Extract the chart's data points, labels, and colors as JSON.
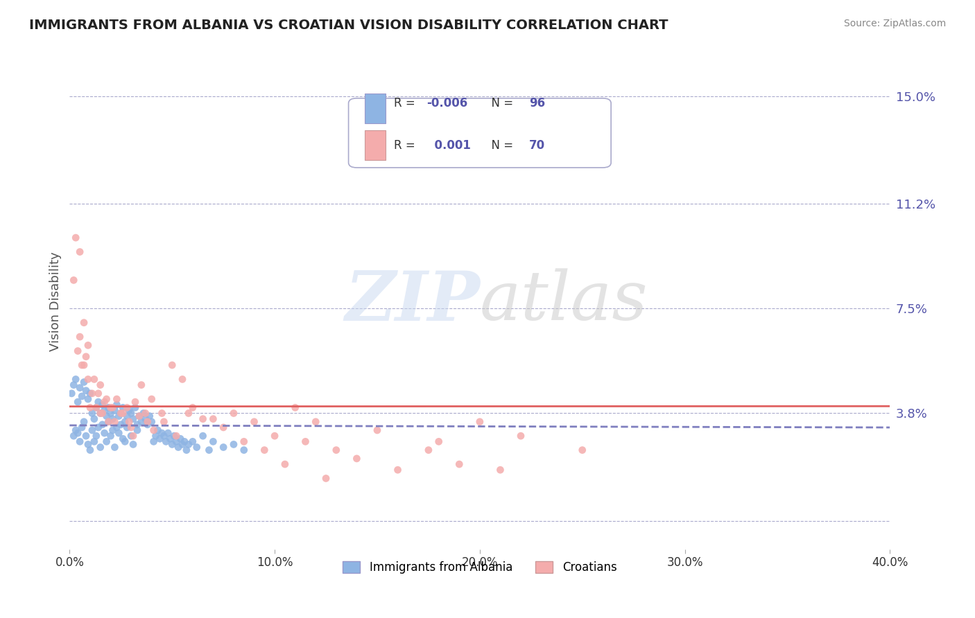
{
  "title": "IMMIGRANTS FROM ALBANIA VS CROATIAN VISION DISABILITY CORRELATION CHART",
  "source": "Source: ZipAtlas.com",
  "xlabel": "",
  "ylabel": "Vision Disability",
  "xlim": [
    0.0,
    0.4
  ],
  "ylim": [
    -0.01,
    0.165
  ],
  "yticks": [
    0.0,
    0.038,
    0.075,
    0.112,
    0.15
  ],
  "ytick_labels": [
    "",
    "3.8%",
    "7.5%",
    "11.2%",
    "15.0%"
  ],
  "xticks": [
    0.0,
    0.1,
    0.2,
    0.3,
    0.4
  ],
  "xtick_labels": [
    "0.0%",
    "10.0%",
    "20.0%",
    "30.0%",
    "40.0%"
  ],
  "blue_color": "#8EB4E3",
  "pink_color": "#F4ACAC",
  "blue_line_color": "#7F7FBF",
  "pink_line_color": "#E06060",
  "grid_color": "#AAAACC",
  "title_color": "#333333",
  "axis_label_color": "#5555AA",
  "watermark": "ZIPatlas",
  "legend_R1": "-0.006",
  "legend_N1": "96",
  "legend_R2": "0.001",
  "legend_N2": "70",
  "legend_label1": "Immigrants from Albania",
  "legend_label2": "Croatians",
  "blue_scatter_x": [
    0.002,
    0.003,
    0.004,
    0.005,
    0.006,
    0.007,
    0.008,
    0.009,
    0.01,
    0.011,
    0.012,
    0.013,
    0.014,
    0.015,
    0.016,
    0.017,
    0.018,
    0.019,
    0.02,
    0.021,
    0.022,
    0.023,
    0.024,
    0.025,
    0.026,
    0.027,
    0.028,
    0.03,
    0.031,
    0.033,
    0.001,
    0.002,
    0.003,
    0.004,
    0.005,
    0.006,
    0.007,
    0.008,
    0.009,
    0.01,
    0.011,
    0.012,
    0.013,
    0.014,
    0.015,
    0.016,
    0.017,
    0.018,
    0.019,
    0.02,
    0.021,
    0.022,
    0.023,
    0.024,
    0.025,
    0.026,
    0.027,
    0.028,
    0.029,
    0.03,
    0.031,
    0.032,
    0.033,
    0.034,
    0.035,
    0.036,
    0.037,
    0.038,
    0.039,
    0.04,
    0.041,
    0.042,
    0.043,
    0.044,
    0.045,
    0.046,
    0.047,
    0.048,
    0.049,
    0.05,
    0.051,
    0.052,
    0.053,
    0.054,
    0.055,
    0.056,
    0.057,
    0.058,
    0.06,
    0.062,
    0.065,
    0.068,
    0.07,
    0.075,
    0.08,
    0.085
  ],
  "blue_scatter_y": [
    0.03,
    0.032,
    0.031,
    0.028,
    0.033,
    0.035,
    0.03,
    0.027,
    0.025,
    0.032,
    0.028,
    0.03,
    0.033,
    0.026,
    0.034,
    0.031,
    0.028,
    0.035,
    0.03,
    0.032,
    0.026,
    0.033,
    0.031,
    0.034,
    0.029,
    0.028,
    0.033,
    0.03,
    0.027,
    0.032,
    0.045,
    0.048,
    0.05,
    0.042,
    0.047,
    0.044,
    0.049,
    0.046,
    0.043,
    0.045,
    0.038,
    0.036,
    0.04,
    0.042,
    0.038,
    0.041,
    0.039,
    0.037,
    0.04,
    0.038,
    0.036,
    0.039,
    0.041,
    0.037,
    0.038,
    0.04,
    0.035,
    0.037,
    0.039,
    0.038,
    0.036,
    0.04,
    0.034,
    0.037,
    0.035,
    0.038,
    0.036,
    0.034,
    0.037,
    0.035,
    0.028,
    0.03,
    0.032,
    0.029,
    0.031,
    0.03,
    0.028,
    0.031,
    0.029,
    0.027,
    0.03,
    0.028,
    0.026,
    0.029,
    0.027,
    0.028,
    0.025,
    0.027,
    0.028,
    0.026,
    0.03,
    0.025,
    0.028,
    0.026,
    0.027,
    0.025
  ],
  "pink_scatter_x": [
    0.002,
    0.004,
    0.005,
    0.006,
    0.007,
    0.008,
    0.009,
    0.01,
    0.012,
    0.014,
    0.015,
    0.016,
    0.018,
    0.02,
    0.022,
    0.025,
    0.028,
    0.03,
    0.032,
    0.035,
    0.038,
    0.04,
    0.045,
    0.05,
    0.055,
    0.06,
    0.07,
    0.08,
    0.09,
    0.1,
    0.11,
    0.12,
    0.13,
    0.15,
    0.18,
    0.2,
    0.22,
    0.25,
    0.003,
    0.005,
    0.007,
    0.009,
    0.011,
    0.013,
    0.015,
    0.017,
    0.019,
    0.021,
    0.023,
    0.026,
    0.029,
    0.031,
    0.034,
    0.037,
    0.041,
    0.046,
    0.052,
    0.058,
    0.065,
    0.075,
    0.085,
    0.095,
    0.105,
    0.115,
    0.125,
    0.14,
    0.16,
    0.175,
    0.19,
    0.21
  ],
  "pink_scatter_y": [
    0.085,
    0.06,
    0.065,
    0.055,
    0.07,
    0.058,
    0.062,
    0.04,
    0.05,
    0.045,
    0.048,
    0.038,
    0.043,
    0.04,
    0.035,
    0.038,
    0.04,
    0.033,
    0.042,
    0.048,
    0.035,
    0.043,
    0.038,
    0.055,
    0.05,
    0.04,
    0.036,
    0.038,
    0.035,
    0.03,
    0.04,
    0.035,
    0.025,
    0.032,
    0.028,
    0.035,
    0.03,
    0.025,
    0.1,
    0.095,
    0.055,
    0.05,
    0.045,
    0.04,
    0.038,
    0.042,
    0.035,
    0.04,
    0.043,
    0.038,
    0.035,
    0.03,
    0.037,
    0.038,
    0.032,
    0.035,
    0.03,
    0.038,
    0.036,
    0.033,
    0.028,
    0.025,
    0.02,
    0.028,
    0.015,
    0.022,
    0.018,
    0.025,
    0.02,
    0.018
  ]
}
